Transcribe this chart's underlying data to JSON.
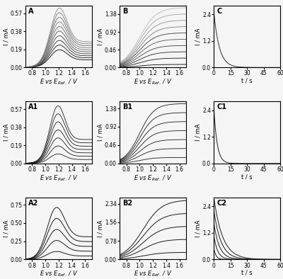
{
  "fig_width": 4.0,
  "fig_height": 3.94,
  "dpi": 100,
  "bg_color": "#f5f5f5",
  "panel_labels": [
    "A",
    "B",
    "C",
    "A1",
    "B1",
    "C1",
    "A2",
    "B2",
    "C2"
  ],
  "n_curves_A": 10,
  "n_curves_B": 10,
  "n_curves_C": 1,
  "n_curves_A1": 7,
  "n_curves_B1": 7,
  "n_curves_C1": 1,
  "n_curves_A2": 5,
  "n_curves_B2": 5,
  "n_curves_C2": 5,
  "E_min": 0.7,
  "E_max": 1.7,
  "t_min": 0,
  "t_max": 60,
  "xlabel_E": "E vs E$_{Ref.}$ / V",
  "xlabel_t": "t / s",
  "ylabel_I": "I / mA",
  "tick_label_fontsize": 5.5,
  "axis_label_fontsize": 6,
  "panel_label_fontsize": 7
}
